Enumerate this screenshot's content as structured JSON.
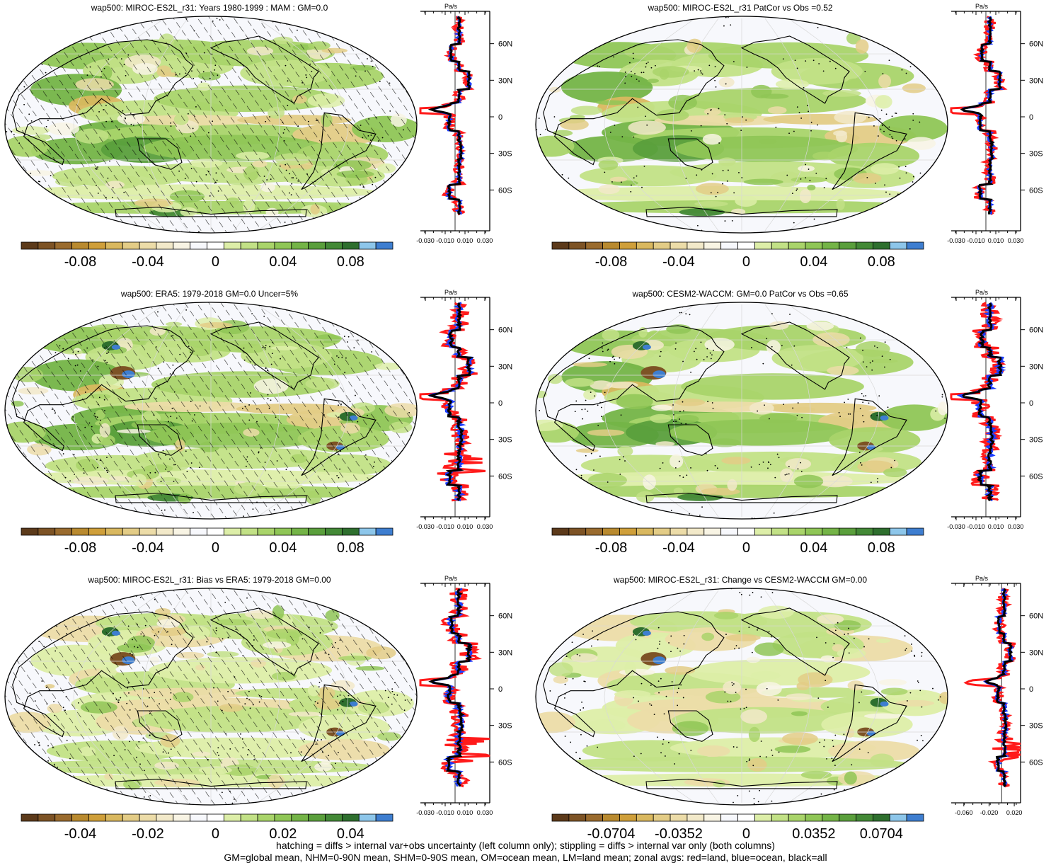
{
  "panels": [
    {
      "title": "wap500: MIROC-ES2L_r31: Years 1980-1999 : MAM : GM=0.0",
      "col": 0,
      "row": 0,
      "hatch": true,
      "stipple": "sparse",
      "cbar_labels": [
        "-0.08",
        "-0.04",
        "0",
        "0.04",
        "0.08"
      ],
      "zonal_ticks": [
        "-0.030",
        "-0.010",
        "0.010",
        "0.030"
      ],
      "zonal_unit": "Pa/s",
      "lat_labels": [
        "60N",
        "30N",
        "0",
        "30S",
        "60S"
      ]
    },
    {
      "title": "wap500: MIROC-ES2L_r31 PatCor vs Obs =0.52",
      "col": 1,
      "row": 0,
      "hatch": false,
      "stipple": "sparse",
      "cbar_labels": [
        "-0.08",
        "-0.04",
        "0",
        "0.04",
        "0.08"
      ],
      "zonal_ticks": [
        "-0.030",
        "-0.010",
        "0.010",
        "0.030"
      ],
      "zonal_unit": "Pa/s",
      "lat_labels": [
        "60N",
        "30N",
        "0",
        "30S",
        "60S"
      ]
    },
    {
      "title": "wap500: ERA5: 1979-2018 GM=0.0 Uncer=5%",
      "col": 0,
      "row": 1,
      "hatch": true,
      "stipple": "sparse",
      "cbar_labels": [
        "-0.08",
        "-0.04",
        "0",
        "0.04",
        "0.08"
      ],
      "zonal_ticks": [
        "-0.030",
        "-0.010",
        "0.010",
        "0.030"
      ],
      "zonal_unit": "Pa/s",
      "lat_labels": [
        "60N",
        "30N",
        "0",
        "30S",
        "60S"
      ]
    },
    {
      "title": "wap500: CESM2-WACCM: GM=0.0 PatCor vs Obs =0.65",
      "col": 1,
      "row": 1,
      "hatch": false,
      "stipple": "sparse",
      "cbar_labels": [
        "-0.08",
        "-0.04",
        "0",
        "0.04",
        "0.08"
      ],
      "zonal_ticks": [
        "-0.030",
        "-0.010",
        "0.010",
        "0.030"
      ],
      "zonal_unit": "Pa/s",
      "lat_labels": [
        "60N",
        "30N",
        "0",
        "30S",
        "60S"
      ]
    },
    {
      "title": "wap500: MIROC-ES2L_r31: Bias vs ERA5: 1979-2018 GM=0.00",
      "col": 0,
      "row": 2,
      "hatch": true,
      "stipple": "sparse",
      "cbar_labels": [
        "-0.04",
        "-0.02",
        "0",
        "0.02",
        "0.04"
      ],
      "zonal_ticks": [
        "-0.030",
        "-0.010",
        "0.010",
        "0.030"
      ],
      "zonal_unit": "Pa/s",
      "lat_labels": [
        "60N",
        "30N",
        "0",
        "30S",
        "60S"
      ]
    },
    {
      "title": "wap500: MIROC-ES2L_r31: Change vs CESM2-WACCM GM=0.00",
      "col": 1,
      "row": 2,
      "hatch": false,
      "stipple": "sparse",
      "cbar_labels": [
        "-0.0704",
        "-0.0352",
        "0",
        "0.0352",
        "0.0704"
      ],
      "zonal_ticks": [
        "-0.060",
        "-0.020",
        "0.020"
      ],
      "zonal_unit": "Pa/s",
      "lat_labels": [
        "60N",
        "30N",
        "0",
        "30S",
        "60S"
      ]
    }
  ],
  "colorbar_colors": [
    "#5c3a1a",
    "#7d5325",
    "#9a6b2e",
    "#b98a2f",
    "#cf9f3a",
    "#d9b85f",
    "#e3cc86",
    "#ecdca8",
    "#f2e9c9",
    "#f8f4e4",
    "#f7f8fc",
    "#ffffff",
    "#ddeea8",
    "#c2e186",
    "#a9d46a",
    "#8fc656",
    "#74b447",
    "#5a9f3c",
    "#438936",
    "#2e6f2e",
    "#8dc6ea",
    "#3e7ed0"
  ],
  "footer": {
    "line1": "hatching = diffs > internal var+obs uncertainty (left column only); stippling = diffs > internal var only (both columns)",
    "line2": "GM=global mean, NHM=0-90N mean, SHM=0-90S mean, OM=ocean mean, LM=land mean; zonal avgs: red=land, blue=ocean, black=all"
  },
  "chart_data": [
    {
      "type": "heatmap",
      "title": "wap500: MIROC-ES2L_r31: Years 1980-1999 : MAM : GM=0.0",
      "colorbar_ticks": [
        -0.08,
        -0.04,
        0,
        0.04,
        0.08
      ],
      "zonal_unit": "Pa/s",
      "zonal_xticks": [
        -0.03,
        -0.01,
        0.01,
        0.03
      ],
      "lat_ticks": [
        "60N",
        "30N",
        "0",
        "30S",
        "60S"
      ],
      "zonal_means": {
        "lat": [
          75,
          60,
          45,
          30,
          15,
          5,
          0,
          -5,
          -15,
          -30,
          -45,
          -60,
          -70
        ],
        "land": [
          0.004,
          -0.006,
          0.008,
          0.012,
          0.01,
          -0.03,
          -0.002,
          -0.03,
          0.004,
          0.004,
          -0.002,
          -0.008,
          0.016
        ],
        "ocean": [
          0.004,
          -0.004,
          0.004,
          0.018,
          0.008,
          -0.008,
          -0.002,
          -0.008,
          0.004,
          0.004,
          0.002,
          -0.004,
          -0.012
        ],
        "all": [
          0.004,
          -0.004,
          0.004,
          0.014,
          0.008,
          -0.008,
          -0.002,
          -0.008,
          0.004,
          0.004,
          0.002,
          -0.004,
          0.002
        ]
      }
    },
    {
      "type": "heatmap",
      "title": "wap500: MIROC-ES2L_r31 PatCor vs Obs =0.52",
      "colorbar_ticks": [
        -0.08,
        -0.04,
        0,
        0.04,
        0.08
      ],
      "zonal_unit": "Pa/s",
      "zonal_xticks": [
        -0.03,
        -0.01,
        0.01,
        0.03
      ],
      "lat_ticks": [
        "60N",
        "30N",
        "0",
        "30S",
        "60S"
      ]
    },
    {
      "type": "heatmap",
      "title": "wap500: ERA5: 1979-2018 GM=0.0 Uncer=5%",
      "colorbar_ticks": [
        -0.08,
        -0.04,
        0,
        0.04,
        0.08
      ],
      "zonal_unit": "Pa/s",
      "zonal_xticks": [
        -0.03,
        -0.01,
        0.01,
        0.03
      ],
      "lat_ticks": [
        "60N",
        "30N",
        "0",
        "30S",
        "60S"
      ]
    },
    {
      "type": "heatmap",
      "title": "wap500: CESM2-WACCM: GM=0.0 PatCor vs Obs =0.65",
      "colorbar_ticks": [
        -0.08,
        -0.04,
        0,
        0.04,
        0.08
      ],
      "zonal_unit": "Pa/s",
      "zonal_xticks": [
        -0.03,
        -0.01,
        0.01,
        0.03
      ],
      "lat_ticks": [
        "60N",
        "30N",
        "0",
        "30S",
        "60S"
      ]
    },
    {
      "type": "heatmap",
      "title": "wap500: MIROC-ES2L_r31: Bias vs ERA5: 1979-2018 GM=0.00",
      "colorbar_ticks": [
        -0.04,
        -0.02,
        0,
        0.02,
        0.04
      ],
      "zonal_unit": "Pa/s",
      "zonal_xticks": [
        -0.03,
        -0.01,
        0.01,
        0.03
      ],
      "lat_ticks": [
        "60N",
        "30N",
        "0",
        "30S",
        "60S"
      ]
    },
    {
      "type": "heatmap",
      "title": "wap500: MIROC-ES2L_r31: Change vs CESM2-WACCM GM=0.00",
      "colorbar_ticks": [
        -0.0704,
        -0.0352,
        0,
        0.0352,
        0.0704
      ],
      "zonal_unit": "Pa/s",
      "zonal_xticks": [
        -0.06,
        -0.02,
        0.02
      ],
      "lat_ticks": [
        "60N",
        "30N",
        "0",
        "30S",
        "60S"
      ]
    }
  ]
}
